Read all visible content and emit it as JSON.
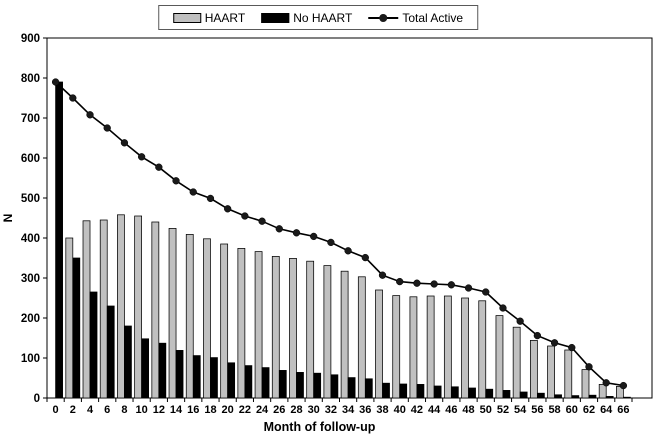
{
  "legend": {
    "items": [
      {
        "label": "HAART",
        "swatch": "bar",
        "color": "#c0c0c0"
      },
      {
        "label": "No HAART",
        "swatch": "bar",
        "color": "#000000"
      },
      {
        "label": "Total Active",
        "swatch": "line-marker",
        "color": "#1a1a1a"
      }
    ]
  },
  "chart_data": {
    "type": "bar",
    "subtype": "grouped-bars-with-line-overlay",
    "title": "",
    "xlabel": "Month of follow-up",
    "ylabel": "N",
    "ylim": [
      0,
      900
    ],
    "ytick_step": 100,
    "y_tick_labels": [
      "0",
      "100",
      "200",
      "300",
      "400",
      "500",
      "600",
      "700",
      "800",
      "900"
    ],
    "grid": false,
    "legend_position": "top-center",
    "categories": [
      0,
      2,
      4,
      6,
      8,
      10,
      12,
      14,
      16,
      18,
      20,
      22,
      24,
      26,
      28,
      30,
      32,
      34,
      36,
      38,
      40,
      42,
      44,
      46,
      48,
      50,
      52,
      54,
      56,
      58,
      60,
      62,
      64,
      66
    ],
    "series": [
      {
        "name": "HAART",
        "type": "bar",
        "color": "#c0c0c0",
        "values": [
          0,
          400,
          443,
          445,
          458,
          455,
          440,
          424,
          409,
          398,
          385,
          374,
          366,
          354,
          349,
          342,
          331,
          317,
          303,
          270,
          256,
          253,
          255,
          255,
          250,
          243,
          206,
          177,
          144,
          130,
          120,
          71,
          34,
          29
        ]
      },
      {
        "name": "No HAART",
        "type": "bar",
        "color": "#000000",
        "values": [
          790,
          350,
          265,
          230,
          180,
          148,
          137,
          119,
          106,
          101,
          88,
          81,
          76,
          69,
          64,
          62,
          58,
          51,
          48,
          37,
          35,
          34,
          30,
          28,
          25,
          22,
          19,
          15,
          12,
          8,
          6,
          7,
          4,
          2
        ]
      },
      {
        "name": "Total Active",
        "type": "line",
        "color": "#1a1a1a",
        "values": [
          790,
          750,
          708,
          675,
          638,
          603,
          577,
          543,
          515,
          499,
          473,
          455,
          442,
          423,
          413,
          404,
          389,
          368,
          351,
          307,
          291,
          287,
          285,
          283,
          275,
          265,
          225,
          192,
          156,
          138,
          126,
          78,
          38,
          31
        ]
      }
    ]
  },
  "plot_style": {
    "bar_border_color": "#000000",
    "axis_color": "#000000",
    "background": "#ffffff"
  }
}
